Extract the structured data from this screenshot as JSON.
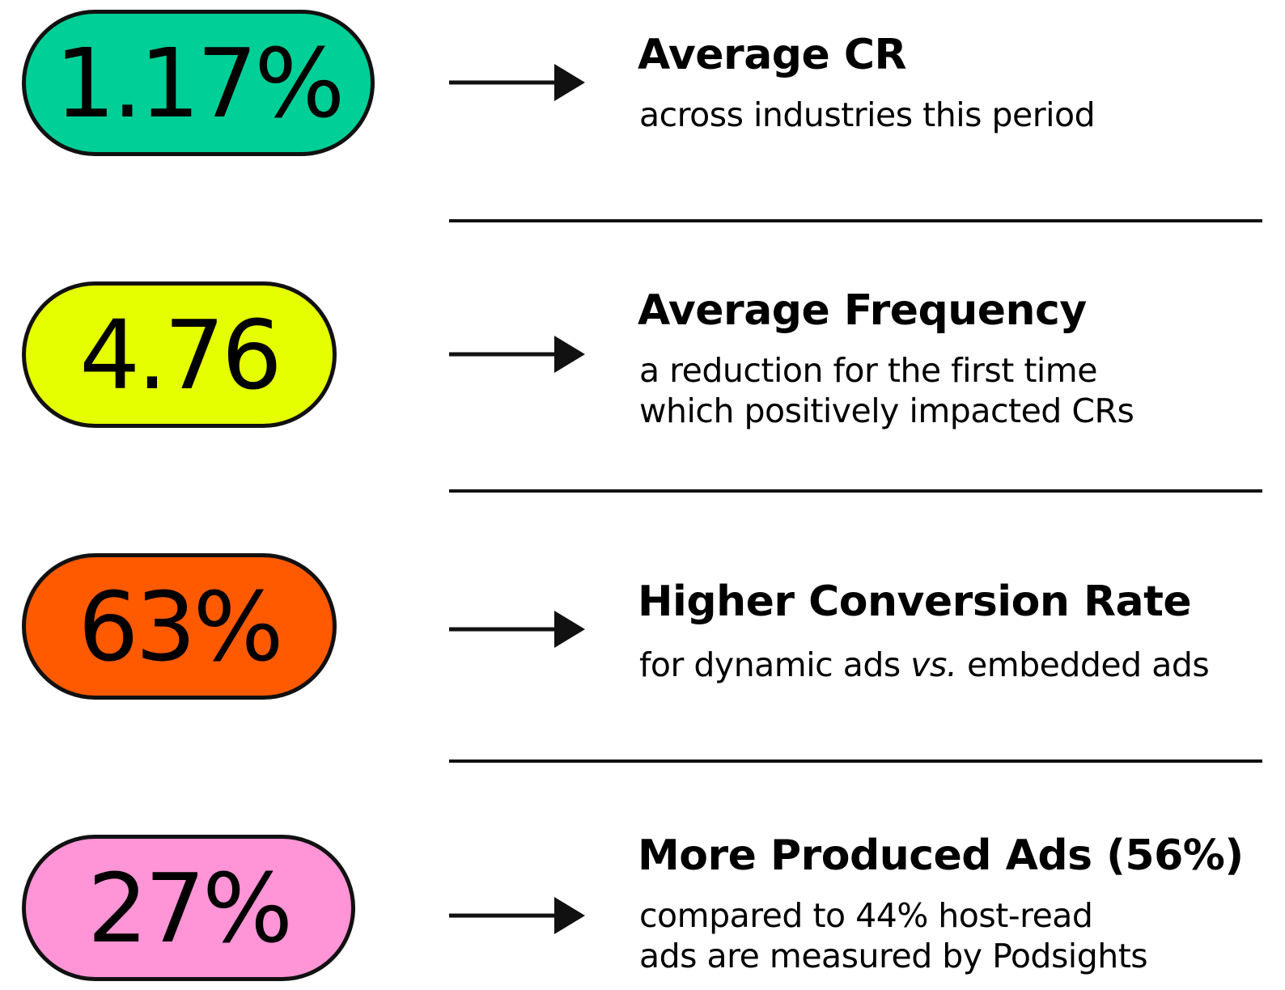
{
  "items": [
    {
      "value": "1.17%",
      "color": "#00cf97",
      "title": "Average CR",
      "description": [
        "across industries this period"
      ]
    },
    {
      "value": "4.76",
      "color": "#e5ff00",
      "title": "Average Frequency",
      "description": [
        "a reduction for the first time",
        "which positively impacted CRs"
      ]
    },
    {
      "value": "63%",
      "color": "#ff5a00",
      "title": "Higher Conversion Rate",
      "description": [
        [
          {
            "text": "for dynamic ads "
          },
          {
            "text": "vs.",
            "italic": true
          },
          {
            "text": " embedded ads"
          }
        ]
      ]
    },
    {
      "value": "27%",
      "color": "#ff94d6",
      "title": "More Produced Ads (56%)",
      "description": [
        "compared to 44% host-read",
        "ads are measured by Podsights"
      ]
    }
  ]
}
